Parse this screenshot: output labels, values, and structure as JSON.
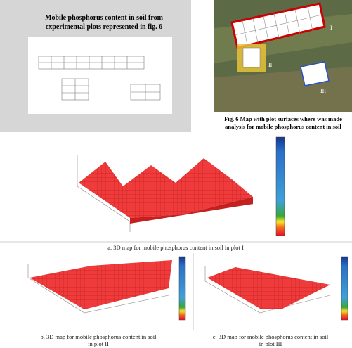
{
  "slide": {
    "title_lines": [
      "Mobile phosphorus content in soil from",
      "experimental plots represented in fig. 6"
    ]
  },
  "map": {
    "plot_labels": [
      "I",
      "II",
      "III"
    ],
    "caption_lines": [
      "Fig. 6 Map with plot surfaces where was made",
      "analysis for mobile phosphorus content in soil"
    ]
  },
  "panels": [
    {
      "caption_lines": [
        "a.   3D map for mobile phosphorus content in soil in plot I"
      ]
    },
    {
      "caption_lines": [
        "b.   3D map for mobile phosphorus content in soil",
        "in plot II"
      ]
    },
    {
      "caption_lines": [
        "c.   3D map for mobile phosphorus content in soil",
        "in plot III"
      ]
    }
  ]
}
